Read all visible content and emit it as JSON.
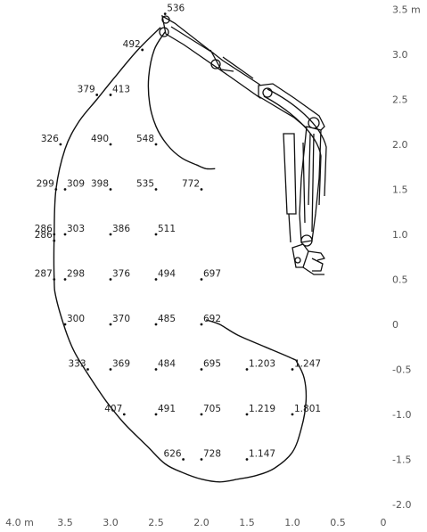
{
  "y_axis": {
    "unit": "m",
    "ticks": [
      "3.5",
      "3.0",
      "2.5",
      "2.0",
      "1.5",
      "1.0",
      "0.5",
      "0",
      "-0.5",
      "-1.0",
      "-1.5",
      "-2.0"
    ]
  },
  "x_axis": {
    "unit": "m",
    "ticks": [
      "4.0",
      "3.5",
      "3.0",
      "2.5",
      "2.0",
      "1.5",
      "1.0",
      "0.5",
      "0"
    ]
  },
  "points": [
    {
      "x": 2.4,
      "y": 3.45,
      "label": "536"
    },
    {
      "x": 2.65,
      "y": 3.05,
      "label": "492"
    },
    {
      "x": 3.15,
      "y": 2.55,
      "label": "379"
    },
    {
      "x": 3.0,
      "y": 2.55,
      "label": "413"
    },
    {
      "x": 3.55,
      "y": 2.0,
      "label": "326"
    },
    {
      "x": 3.0,
      "y": 2.0,
      "label": "490"
    },
    {
      "x": 2.5,
      "y": 2.0,
      "label": "548"
    },
    {
      "x": 3.6,
      "y": 1.5,
      "label": "299"
    },
    {
      "x": 3.5,
      "y": 1.5,
      "label": "309"
    },
    {
      "x": 3.0,
      "y": 1.5,
      "label": "398"
    },
    {
      "x": 2.5,
      "y": 1.5,
      "label": "535"
    },
    {
      "x": 2.0,
      "y": 1.5,
      "label": "772"
    },
    {
      "x": 3.62,
      "y": 1.0,
      "label": "286"
    },
    {
      "x": 3.62,
      "y": 0.93,
      "label": "286"
    },
    {
      "x": 3.5,
      "y": 1.0,
      "label": "303"
    },
    {
      "x": 3.0,
      "y": 1.0,
      "label": "386"
    },
    {
      "x": 2.5,
      "y": 1.0,
      "label": "511"
    },
    {
      "x": 3.62,
      "y": 0.5,
      "label": "287"
    },
    {
      "x": 3.5,
      "y": 0.5,
      "label": "298"
    },
    {
      "x": 3.0,
      "y": 0.5,
      "label": "376"
    },
    {
      "x": 2.5,
      "y": 0.5,
      "label": "494"
    },
    {
      "x": 2.0,
      "y": 0.5,
      "label": "697"
    },
    {
      "x": 3.5,
      "y": 0.0,
      "label": "300"
    },
    {
      "x": 3.0,
      "y": 0.0,
      "label": "370"
    },
    {
      "x": 2.5,
      "y": 0.0,
      "label": "485"
    },
    {
      "x": 2.0,
      "y": 0.0,
      "label": "692"
    },
    {
      "x": 3.25,
      "y": -0.5,
      "label": "333"
    },
    {
      "x": 3.0,
      "y": -0.5,
      "label": "369"
    },
    {
      "x": 2.5,
      "y": -0.5,
      "label": "484"
    },
    {
      "x": 2.0,
      "y": -0.5,
      "label": "695"
    },
    {
      "x": 1.5,
      "y": -0.5,
      "label": "1.203"
    },
    {
      "x": 1.0,
      "y": -0.5,
      "label": "1.247"
    },
    {
      "x": 2.85,
      "y": -1.0,
      "label": "407"
    },
    {
      "x": 2.5,
      "y": -1.0,
      "label": "491"
    },
    {
      "x": 2.0,
      "y": -1.0,
      "label": "705"
    },
    {
      "x": 1.5,
      "y": -1.0,
      "label": "1.219"
    },
    {
      "x": 1.0,
      "y": -1.0,
      "label": "1.801"
    },
    {
      "x": 2.2,
      "y": -1.5,
      "label": "626"
    },
    {
      "x": 2.0,
      "y": -1.5,
      "label": "728"
    },
    {
      "x": 1.5,
      "y": -1.5,
      "label": "1.147"
    }
  ],
  "label_sides": [
    "R",
    "L",
    "L",
    "R",
    "L",
    "L",
    "L",
    "L",
    "R",
    "L",
    "L",
    "L",
    "L",
    "L",
    "R",
    "R",
    "R",
    "L",
    "R",
    "R",
    "R",
    "R",
    "R",
    "R",
    "R",
    "R",
    "L",
    "R",
    "R",
    "R",
    "R",
    "R",
    "L",
    "R",
    "R",
    "R",
    "R",
    "L",
    "R",
    "R"
  ],
  "outer_envelope": [
    [
      2.45,
      3.3
    ],
    [
      2.7,
      3.05
    ],
    [
      2.95,
      2.75
    ],
    [
      3.15,
      2.5
    ],
    [
      3.35,
      2.25
    ],
    [
      3.5,
      1.95
    ],
    [
      3.6,
      1.5
    ],
    [
      3.62,
      1.0
    ],
    [
      3.62,
      0.5
    ],
    [
      3.6,
      0.3
    ],
    [
      3.5,
      -0.05
    ],
    [
      3.4,
      -0.3
    ],
    [
      3.25,
      -0.55
    ],
    [
      3.05,
      -0.85
    ],
    [
      2.85,
      -1.1
    ],
    [
      2.6,
      -1.35
    ],
    [
      2.4,
      -1.55
    ],
    [
      2.2,
      -1.65
    ],
    [
      2.0,
      -1.72
    ],
    [
      1.8,
      -1.75
    ],
    [
      1.6,
      -1.72
    ],
    [
      1.4,
      -1.68
    ],
    [
      1.2,
      -1.6
    ],
    [
      1.0,
      -1.42
    ],
    [
      0.9,
      -1.15
    ],
    [
      0.85,
      -0.85
    ],
    [
      0.87,
      -0.6
    ],
    [
      0.95,
      -0.42
    ],
    [
      1.0,
      -0.38
    ],
    [
      1.3,
      -0.25
    ],
    [
      1.6,
      -0.12
    ],
    [
      1.8,
      0.0
    ],
    [
      1.95,
      0.05
    ]
  ],
  "inner_curve": [
    [
      2.4,
      3.25
    ],
    [
      2.52,
      3.05
    ],
    [
      2.58,
      2.75
    ],
    [
      2.57,
      2.45
    ],
    [
      2.5,
      2.2
    ],
    [
      2.38,
      2.0
    ],
    [
      2.22,
      1.85
    ],
    [
      2.05,
      1.77
    ],
    [
      1.95,
      1.73
    ],
    [
      1.85,
      1.73
    ]
  ]
}
